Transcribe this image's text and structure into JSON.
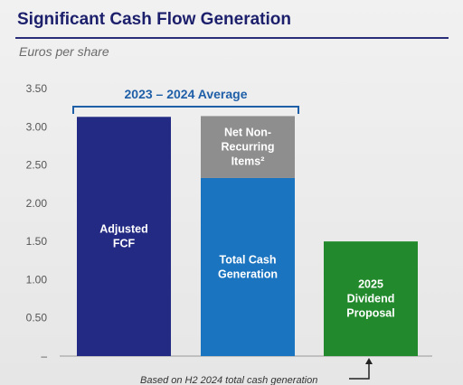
{
  "title": "Significant Cash Flow Generation",
  "subtitle": "Euros per share",
  "colors": {
    "title": "#1c1f6b",
    "adjusted_fcf": "#232a83",
    "total_cash": "#1b74c0",
    "non_recurring": "#8e8e8e",
    "dividend": "#228a2c",
    "bracket": "#1f5fa8"
  },
  "chart_data": {
    "type": "bar",
    "ylim": [
      0,
      3.5
    ],
    "yticks": [
      "–",
      "0.50",
      "1.00",
      "1.50",
      "2.00",
      "2.50",
      "3.00",
      "3.50"
    ],
    "bars": [
      {
        "segments": [
          {
            "value": 3.13,
            "label_lines": [
              "Adjusted",
              "FCF"
            ],
            "color_key": "adjusted_fcf"
          }
        ]
      },
      {
        "segments": [
          {
            "value": 2.33,
            "label_lines": [
              "Total Cash",
              "Generation"
            ],
            "color_key": "total_cash"
          },
          {
            "value": 0.81,
            "label_lines": [
              "Net Non-",
              "Recurring",
              "Items²"
            ],
            "color_key": "non_recurring"
          }
        ]
      },
      {
        "segments": [
          {
            "value": 1.5,
            "label_lines": [
              "2025",
              "Dividend",
              "Proposal"
            ],
            "color_key": "dividend"
          }
        ]
      }
    ],
    "bracket_label": "2023 – 2024 Average",
    "footnote": "Based on H2 2024 total cash generation"
  }
}
